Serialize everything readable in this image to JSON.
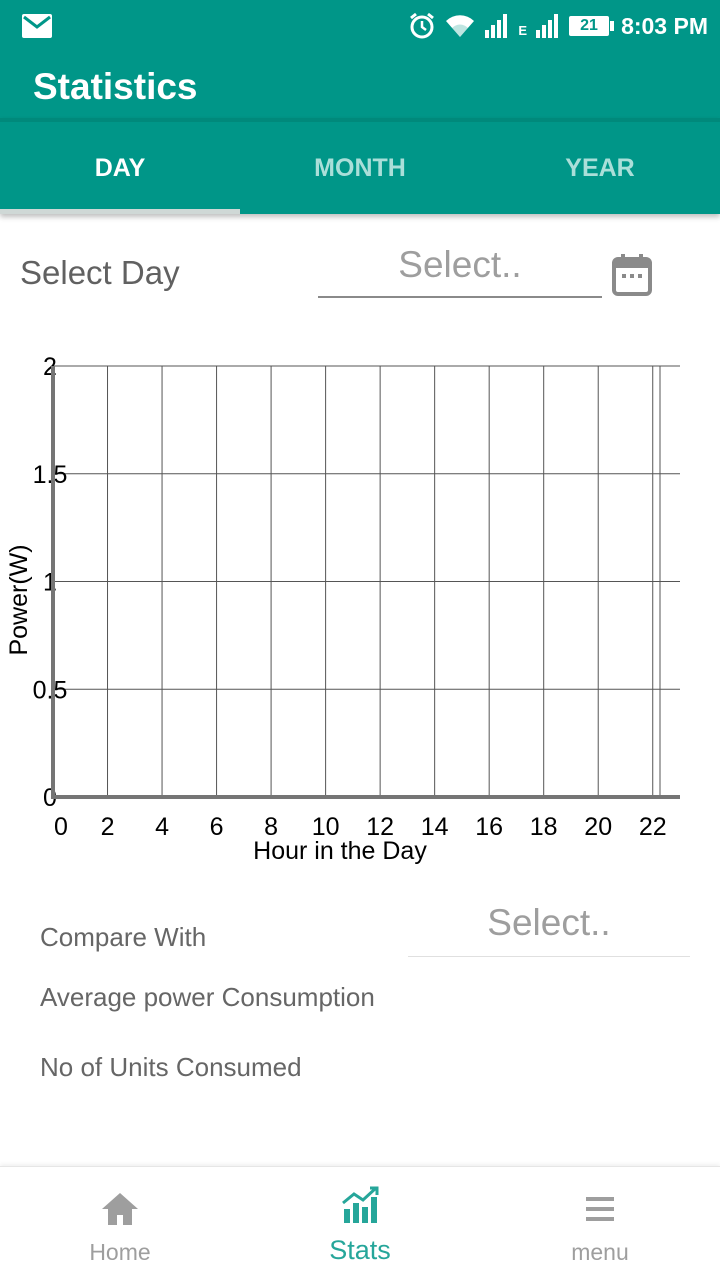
{
  "status_bar": {
    "time": "8:03 PM",
    "battery_level": "21",
    "network_type": "E",
    "icons": [
      "mail-icon",
      "alarm-icon",
      "wifi-icon",
      "signal-icon",
      "signal-icon-2",
      "battery-icon"
    ]
  },
  "app_bar": {
    "title": "Statistics"
  },
  "tabs": [
    {
      "label": "DAY",
      "active": true
    },
    {
      "label": "MONTH",
      "active": false
    },
    {
      "label": "YEAR",
      "active": false
    }
  ],
  "day_selector": {
    "label": "Select Day",
    "placeholder": "Select..",
    "icon": "calendar-icon"
  },
  "chart_data": {
    "type": "line",
    "xlabel": "Hour in the Day",
    "ylabel": "Power(W)",
    "xlim": [
      0,
      23
    ],
    "ylim": [
      0,
      2
    ],
    "x_ticks": [
      0,
      2,
      4,
      6,
      8,
      10,
      12,
      14,
      16,
      18,
      20,
      22
    ],
    "y_ticks": [
      0,
      0.5,
      1,
      1.5,
      2
    ],
    "y_tick_labels": [
      "0",
      "0.5",
      "1",
      "1.5",
      "2"
    ],
    "grid": true,
    "series": []
  },
  "compare": {
    "label": "Compare With",
    "placeholder": "Select.."
  },
  "avg_label": "Average power Consumption",
  "units_label": "No of Units Consumed",
  "bottom_nav": [
    {
      "label": "Home",
      "icon": "home-icon",
      "active": false
    },
    {
      "label": "Stats",
      "icon": "stats-icon",
      "active": true
    },
    {
      "label": "menu",
      "icon": "menu-icon",
      "active": false
    }
  ],
  "colors": {
    "primary": "#009688",
    "accent": "#26a69a",
    "tab_inactive": "#aadfd9"
  }
}
